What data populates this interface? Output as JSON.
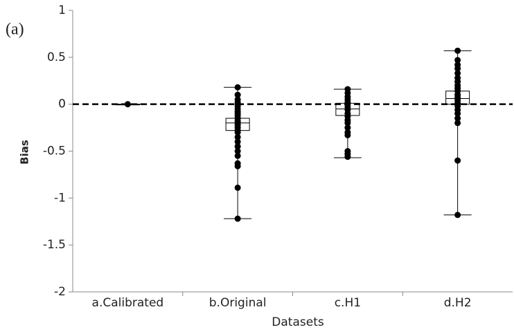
{
  "chart_data": {
    "type": "box",
    "panel_label": "(a)",
    "x_label": "Datasets",
    "y_label": "Bias",
    "categories": [
      "a.Calibrated",
      "b.Original",
      "c.H1",
      "d.H2"
    ],
    "boxes": [
      {
        "min": 0,
        "q1": 0,
        "median": 0,
        "q3": 0,
        "max": 0
      },
      {
        "min": -1.22,
        "q1": -0.28,
        "median": -0.2,
        "q3": -0.15,
        "max": 0.18
      },
      {
        "min": -0.57,
        "q1": -0.12,
        "median": -0.05,
        "q3": 0.01,
        "max": 0.16
      },
      {
        "min": -1.18,
        "q1": 0,
        "median": 0.06,
        "q3": 0.14,
        "max": 0.57
      }
    ],
    "points": [
      [
        0
      ],
      [
        0.18,
        0.1,
        0.05,
        0.02,
        0,
        -0.02,
        -0.05,
        -0.08,
        -0.1,
        -0.12,
        -0.15,
        -0.18,
        -0.2,
        -0.22,
        -0.25,
        -0.28,
        -0.3,
        -0.35,
        -0.4,
        -0.45,
        -0.5,
        -0.55,
        -0.63,
        -0.66,
        -0.89,
        -1.22
      ],
      [
        0.16,
        0.12,
        0.08,
        0.05,
        0.02,
        0,
        -0.03,
        -0.06,
        -0.1,
        -0.13,
        -0.17,
        -0.2,
        -0.25,
        -0.3,
        -0.33,
        -0.5,
        -0.53,
        -0.56
      ],
      [
        0.57,
        0.47,
        0.42,
        0.38,
        0.33,
        0.28,
        0.24,
        0.2,
        0.17,
        0.14,
        0.1,
        0.07,
        0.04,
        0.01,
        -0.02,
        -0.06,
        -0.1,
        -0.15,
        -0.2,
        -0.6,
        -1.18
      ]
    ],
    "reference_line": 0,
    "ylim": [
      -2,
      1
    ],
    "yticks": [
      -2,
      -1.5,
      -1,
      -0.5,
      0,
      0.5,
      1
    ]
  }
}
